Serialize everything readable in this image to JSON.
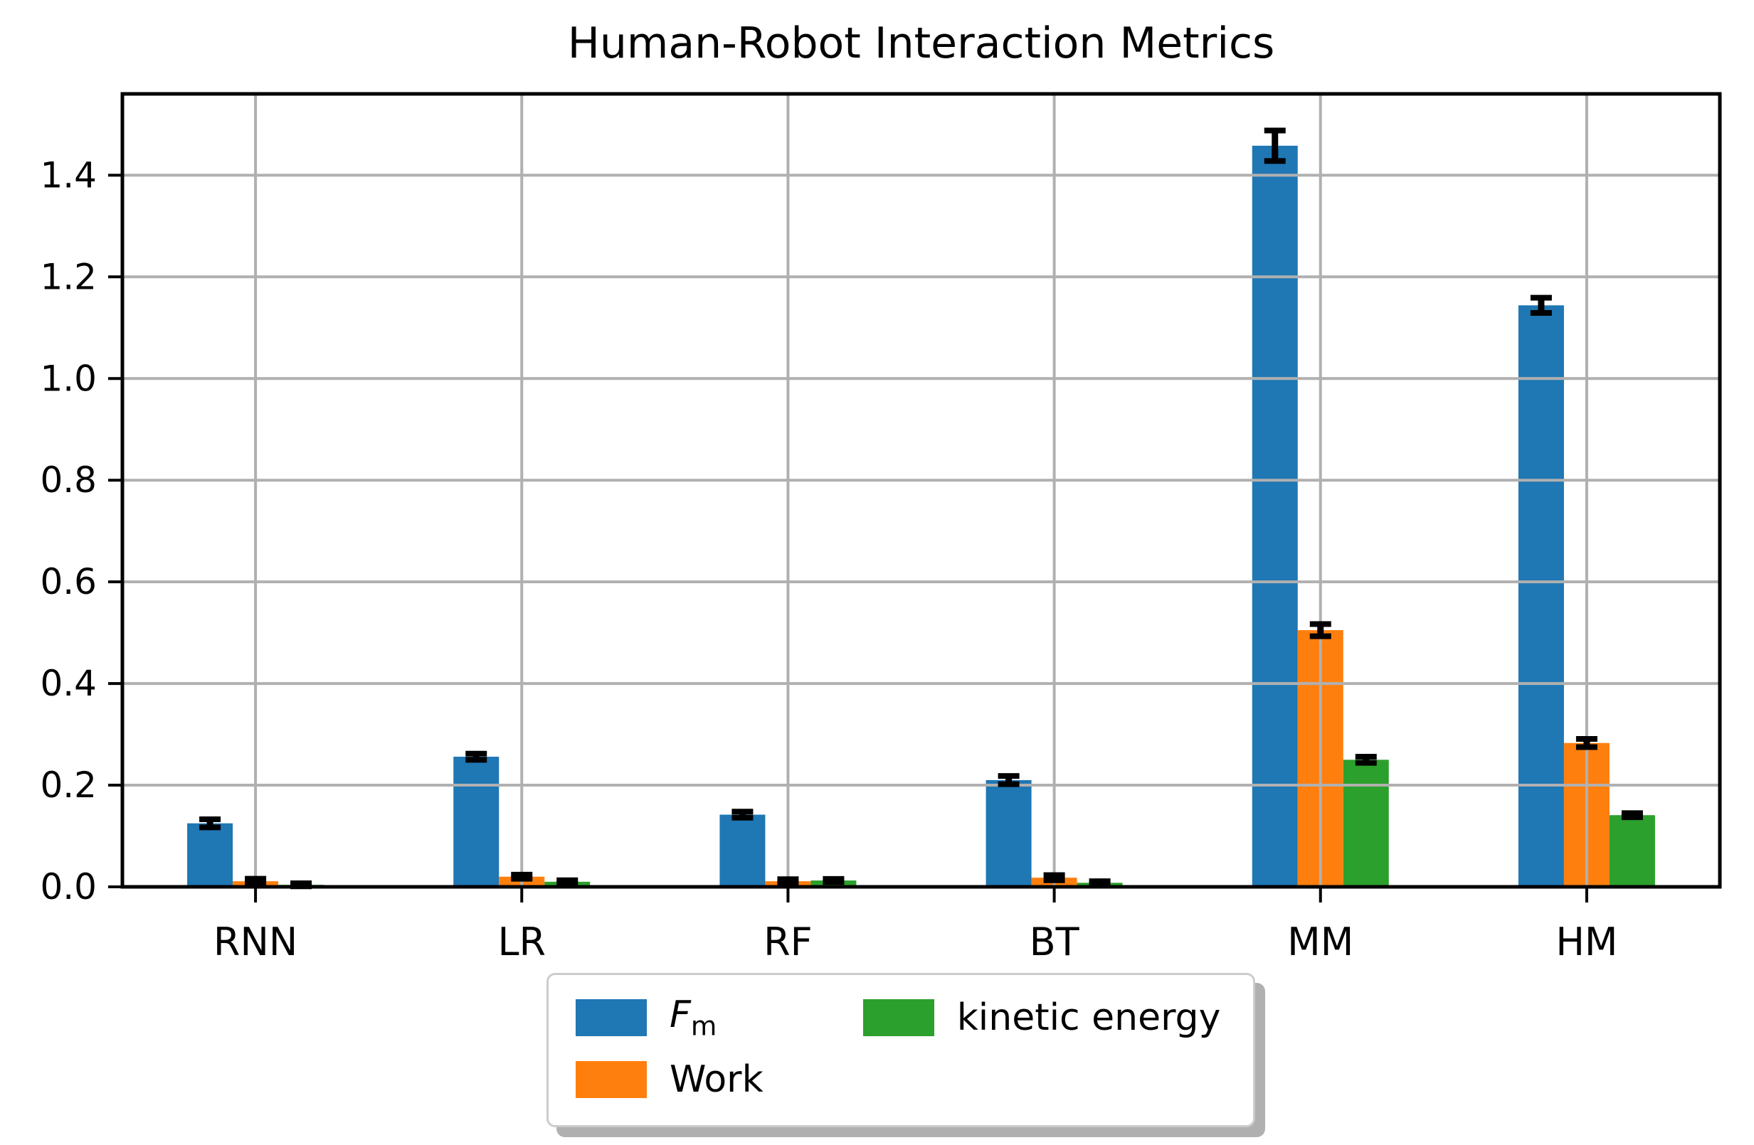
{
  "chart_data": {
    "type": "bar",
    "title": "Human-Robot Interaction Metrics",
    "xlabel": "",
    "ylabel": "",
    "categories": [
      "RNN",
      "LR",
      "RF",
      "BT",
      "MM",
      "HM"
    ],
    "series": [
      {
        "name": "Fm",
        "legend_label": "F_m",
        "color": "#1f77b4",
        "values": [
          0.125,
          0.256,
          0.142,
          0.21,
          1.458,
          1.144
        ],
        "errors": [
          0.008,
          0.006,
          0.006,
          0.008,
          0.03,
          0.015
        ]
      },
      {
        "name": "Work",
        "legend_label": "Work",
        "color": "#ff7f0e",
        "values": [
          0.011,
          0.02,
          0.011,
          0.018,
          0.505,
          0.283
        ],
        "errors": [
          0.005,
          0.004,
          0.004,
          0.005,
          0.012,
          0.008
        ]
      },
      {
        "name": "kinetic energy",
        "legend_label": "kinetic energy",
        "color": "#2ca02c",
        "values": [
          0.004,
          0.01,
          0.0125,
          0.008,
          0.25,
          0.141
        ],
        "errors": [
          0.003,
          0.003,
          0.003,
          0.003,
          0.006,
          0.004
        ]
      }
    ],
    "ylim": [
      0,
      1.56
    ],
    "yticks": [
      "0.0",
      "0.2",
      "0.4",
      "0.6",
      "0.8",
      "1.0",
      "1.2",
      "1.4"
    ],
    "grid": true,
    "grid_color": "#b0b0b0",
    "axis_color": "#000000",
    "error_color": "#000000",
    "legend": {
      "position": "bottom-center-outside",
      "columns": 2,
      "shadow": true,
      "entries": [
        "F_m",
        "Work",
        "kinetic energy"
      ]
    }
  }
}
